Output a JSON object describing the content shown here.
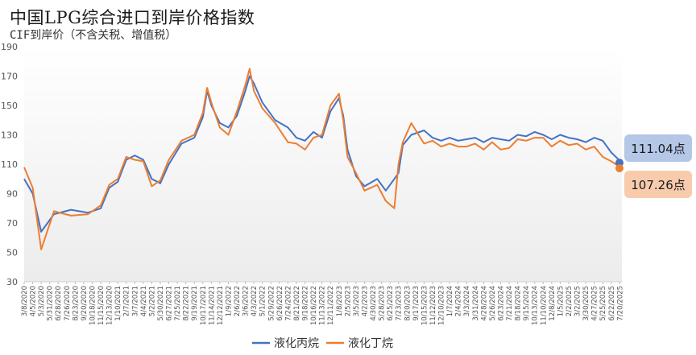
{
  "header": {
    "title": "中国LPG综合进口到岸价格指数",
    "subtitle": "CIF到岸价（不含关税、增值税）"
  },
  "chart_data": {
    "type": "line",
    "title": "中国LPG综合进口到岸价格指数",
    "subtitle": "CIF到岸价（不含关税、增值税）",
    "ylim": [
      30,
      190
    ],
    "yticks": [
      30,
      50,
      70,
      90,
      110,
      130,
      150,
      170,
      190
    ],
    "grid": false,
    "legend_position": "bottom",
    "x_start": "3/8/2020",
    "x_end": "7/27/2025",
    "xtick_labels": [
      "3/8/2020",
      "4/5/2020",
      "5/3/2020",
      "5/31/2020",
      "6/28/2020",
      "7/26/2020",
      "8/23/2020",
      "9/20/2020",
      "10/18/2020",
      "11/15/2020",
      "12/13/2020",
      "1/10/2021",
      "2/7/2021",
      "3/7/2021",
      "4/4/2021",
      "5/2/2021",
      "5/30/2021",
      "6/27/2021",
      "7/25/2021",
      "8/22/2021",
      "9/19/2021",
      "10/17/2021",
      "11/14/2021",
      "12/12/2021",
      "1/9/2022",
      "2/6/2022",
      "3/6/2022",
      "4/3/2022",
      "5/1/2022",
      "5/29/2022",
      "6/26/2022",
      "7/24/2022",
      "8/21/2022",
      "9/18/2022",
      "10/16/2022",
      "11/13/2022",
      "12/11/2022",
      "1/8/2023",
      "2/5/2023",
      "3/5/2023",
      "4/2/2023",
      "4/30/2023",
      "5/28/2023",
      "6/25/2023",
      "7/23/2023",
      "8/20/2023",
      "9/17/2023",
      "10/15/2023",
      "11/12/2023",
      "12/10/2023",
      "1/7/2024",
      "2/4/2024",
      "3/3/2024",
      "3/31/2024",
      "4/28/2024",
      "5/26/2024",
      "6/23/2024",
      "7/21/2024",
      "8/18/2024",
      "9/15/2024",
      "10/13/2024",
      "11/10/2024",
      "12/8/2024",
      "1/5/2025",
      "2/2/2025",
      "3/2/2025",
      "3/30/2025",
      "4/27/2025",
      "5/25/2025",
      "6/22/2025",
      "7/20/2025"
    ],
    "series": [
      {
        "name": "液化丙烷",
        "color": "#4472C4",
        "x": [
          "3/8/2020",
          "4/5/2020",
          "5/3/2020",
          "6/14/2020",
          "8/9/2020",
          "10/4/2020",
          "11/15/2020",
          "12/13/2020",
          "1/10/2021",
          "2/7/2021",
          "3/7/2021",
          "4/4/2021",
          "5/2/2021",
          "5/30/2021",
          "6/27/2021",
          "8/8/2021",
          "9/19/2021",
          "10/17/2021",
          "10/31/2021",
          "11/14/2021",
          "12/12/2021",
          "1/9/2022",
          "2/6/2022",
          "3/6/2022",
          "3/20/2022",
          "4/3/2022",
          "5/1/2022",
          "6/12/2022",
          "7/24/2022",
          "8/21/2022",
          "9/18/2022",
          "10/16/2022",
          "11/13/2022",
          "12/11/2022",
          "1/8/2023",
          "1/22/2023",
          "2/5/2023",
          "3/5/2023",
          "4/2/2023",
          "5/14/2023",
          "6/11/2023",
          "7/9/2023",
          "7/23/2023",
          "8/6/2023",
          "9/3/2023",
          "10/15/2023",
          "11/12/2023",
          "12/10/2023",
          "1/7/2024",
          "2/4/2024",
          "3/3/2024",
          "3/31/2024",
          "4/28/2024",
          "5/26/2024",
          "6/23/2024",
          "7/21/2024",
          "8/18/2024",
          "9/15/2024",
          "10/13/2024",
          "11/10/2024",
          "12/8/2024",
          "1/5/2025",
          "2/2/2025",
          "3/2/2025",
          "3/30/2025",
          "4/27/2025",
          "5/25/2025",
          "6/22/2025",
          "7/27/2025"
        ],
        "values": [
          100,
          90,
          64,
          76,
          79,
          77,
          80,
          94,
          98,
          113,
          116,
          113,
          100,
          97,
          110,
          124,
          128,
          142,
          160,
          150,
          138,
          135,
          143,
          160,
          170,
          165,
          152,
          140,
          135,
          128,
          126,
          132,
          128,
          146,
          155,
          143,
          120,
          102,
          95,
          100,
          92,
          100,
          104,
          123,
          130,
          133,
          128,
          126,
          128,
          126,
          127,
          128,
          125,
          128,
          127,
          126,
          130,
          129,
          132,
          130,
          127,
          130,
          128,
          127,
          125,
          128,
          126,
          118,
          111.04
        ],
        "last_label": "111.04点"
      },
      {
        "name": "液化丁烷",
        "color": "#ED7D31",
        "x": [
          "3/8/2020",
          "4/5/2020",
          "5/3/2020",
          "6/14/2020",
          "8/9/2020",
          "10/4/2020",
          "11/15/2020",
          "12/13/2020",
          "1/10/2021",
          "2/7/2021",
          "3/7/2021",
          "4/4/2021",
          "5/2/2021",
          "5/30/2021",
          "6/27/2021",
          "8/8/2021",
          "9/19/2021",
          "10/17/2021",
          "10/31/2021",
          "11/14/2021",
          "12/12/2021",
          "1/9/2022",
          "2/6/2022",
          "3/6/2022",
          "3/20/2022",
          "4/3/2022",
          "5/1/2022",
          "6/12/2022",
          "7/24/2022",
          "8/21/2022",
          "9/18/2022",
          "10/16/2022",
          "11/13/2022",
          "12/11/2022",
          "1/8/2023",
          "1/22/2023",
          "2/5/2023",
          "3/5/2023",
          "4/2/2023",
          "5/14/2023",
          "6/11/2023",
          "7/9/2023",
          "7/23/2023",
          "8/6/2023",
          "9/3/2023",
          "10/15/2023",
          "11/12/2023",
          "12/10/2023",
          "1/7/2024",
          "2/4/2024",
          "3/3/2024",
          "3/31/2024",
          "4/28/2024",
          "5/26/2024",
          "6/23/2024",
          "7/21/2024",
          "8/18/2024",
          "9/15/2024",
          "10/13/2024",
          "11/10/2024",
          "12/8/2024",
          "1/5/2025",
          "2/2/2025",
          "3/2/2025",
          "3/30/2025",
          "4/27/2025",
          "5/25/2025",
          "6/22/2025",
          "7/27/2025"
        ],
        "values": [
          108,
          94,
          52,
          78,
          75,
          76,
          82,
          96,
          100,
          115,
          113,
          112,
          95,
          99,
          113,
          126,
          130,
          145,
          162,
          152,
          135,
          130,
          146,
          164,
          175,
          160,
          148,
          138,
          125,
          124,
          120,
          128,
          130,
          150,
          158,
          140,
          115,
          104,
          92,
          96,
          85,
          80,
          110,
          125,
          138,
          124,
          126,
          122,
          124,
          122,
          122,
          124,
          120,
          125,
          120,
          121,
          127,
          126,
          128,
          128,
          122,
          126,
          123,
          124,
          120,
          122,
          115,
          112,
          107.26
        ],
        "last_label": "107.26点"
      }
    ]
  }
}
